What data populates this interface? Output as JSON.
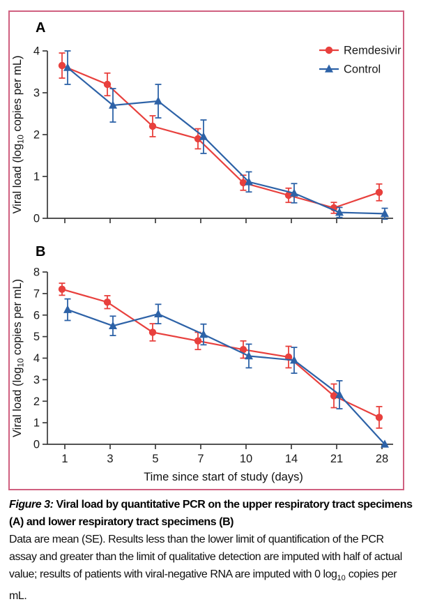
{
  "figure": {
    "panel_a_letter": "A",
    "panel_b_letter": "B",
    "border_color": "#d06080",
    "axis_color": "#3a3a3a"
  },
  "chart_data": {
    "type": "line",
    "x_categories": [
      1,
      3,
      5,
      7,
      10,
      14,
      21,
      28
    ],
    "x_tick_labels": [
      "1",
      "3",
      "5",
      "7",
      "10",
      "14",
      "21",
      "28"
    ],
    "xlabel": "Time since start of study (days)",
    "ylabel": {
      "pre": "Viral load (log",
      "sub": "10",
      "post": " copies per mL)"
    },
    "error_bars": "SE",
    "legend_position": "top-right of panel A",
    "panels": [
      {
        "label": "A",
        "ylim": [
          0,
          4
        ],
        "yticks": [
          0,
          1,
          2,
          3,
          4
        ],
        "series": [
          {
            "name": "Remdesivir",
            "color": "#e8403d",
            "marker": "circle",
            "mean": [
              3.65,
              3.2,
              2.2,
              1.9,
              0.85,
              0.55,
              0.25,
              0.62
            ],
            "se": [
              0.3,
              0.27,
              0.25,
              0.24,
              0.18,
              0.17,
              0.13,
              0.2
            ]
          },
          {
            "name": "Control",
            "color": "#2d62a7",
            "marker": "triangle",
            "mean": [
              3.6,
              2.7,
              2.8,
              1.95,
              0.87,
              0.6,
              0.14,
              0.11
            ],
            "se": [
              0.4,
              0.4,
              0.4,
              0.4,
              0.24,
              0.23,
              0.12,
              0.13
            ]
          }
        ]
      },
      {
        "label": "B",
        "ylim": [
          0,
          8
        ],
        "yticks": [
          0,
          1,
          2,
          3,
          4,
          5,
          6,
          7,
          8
        ],
        "series": [
          {
            "name": "Remdesivir",
            "color": "#e8403d",
            "marker": "circle",
            "mean": [
              7.2,
              6.6,
              5.2,
              4.8,
              4.4,
              4.05,
              2.25,
              1.25
            ],
            "se": [
              0.28,
              0.3,
              0.4,
              0.4,
              0.4,
              0.5,
              0.55,
              0.5
            ]
          },
          {
            "name": "Control",
            "color": "#2d62a7",
            "marker": "triangle",
            "mean": [
              6.25,
              5.5,
              6.05,
              5.1,
              4.1,
              3.9,
              2.3,
              0.0
            ],
            "se": [
              0.5,
              0.45,
              0.45,
              0.48,
              0.55,
              0.6,
              0.65,
              0.0
            ]
          }
        ]
      }
    ]
  },
  "caption": {
    "label": "Figure 3:",
    "title_rest": " Viral load by quantitative PCR on the upper respiratory tract specimens (A) and lower respiratory tract specimens (B)",
    "body_pre": "Data are mean (SE). Results less than the lower limit of quantification of the PCR assay and greater than the limit of qualitative detection are imputed with half of actual value; results of patients with viral-negative RNA are imputed with 0 log",
    "body_sub": "10",
    "body_post": " copies per mL."
  }
}
